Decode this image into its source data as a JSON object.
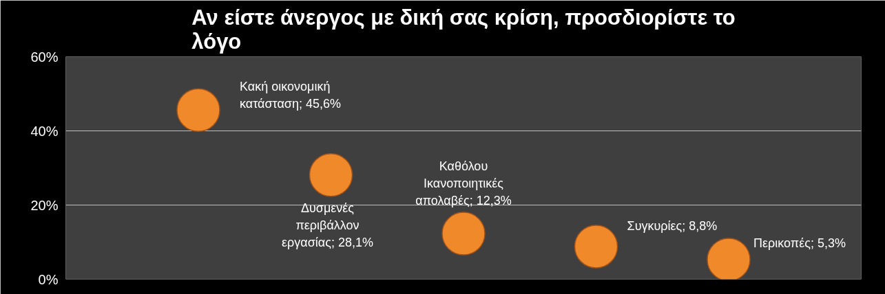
{
  "chart_data": {
    "type": "scatter",
    "title": "Αν είστε άνεργος με δική σας κρίση, προσδιορίστε το λόγο",
    "categories": [
      null,
      null,
      null,
      null,
      null
    ],
    "values": [
      45.6,
      28.1,
      12.3,
      8.8,
      5.3
    ],
    "value_labels": [
      "Κακή οικονομική κατάσταση; 45,6%",
      "Δυσμενές περιβάλλον εργασίας; 28,1%",
      "Καθόλου Ικανοποιητικές απολαβές; 12,3%",
      "Συγκυρίες; 8,8%",
      "Περικοπές; 5,3%"
    ],
    "color": "#f0892a",
    "marker": "circle",
    "ylim": [
      0,
      60
    ],
    "yticks": [
      {
        "value": 0,
        "label": "0%"
      },
      {
        "value": 20,
        "label": "20%"
      },
      {
        "value": 40,
        "label": "40%"
      },
      {
        "value": 60,
        "label": "60%"
      }
    ],
    "grid": "y",
    "tick_labels": "y"
  }
}
